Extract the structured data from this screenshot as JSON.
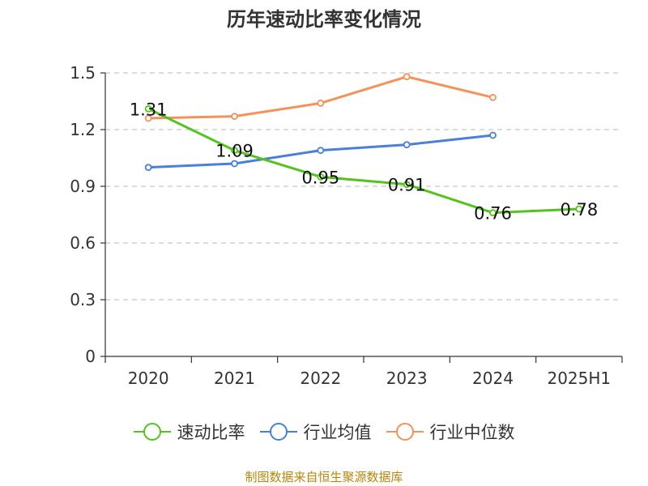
{
  "title": "历年速动比率变化情况",
  "source_note": "制图数据来自恒生聚源数据库",
  "chart_data": {
    "type": "line",
    "categories": [
      "2020",
      "2021",
      "2022",
      "2023",
      "2024",
      "2025H1"
    ],
    "ylim": [
      0,
      1.5
    ],
    "yticks": [
      0,
      0.3,
      0.6,
      0.9,
      1.2,
      1.5
    ],
    "ytick_labels": [
      "0",
      "0.3",
      "0.6",
      "0.9",
      "1.2",
      "1.5"
    ],
    "grid": true,
    "legend_position": "bottom",
    "series": [
      {
        "name": "速动比率",
        "color": "#52c41a",
        "values": [
          1.31,
          1.09,
          0.95,
          0.91,
          0.76,
          0.78
        ],
        "labels": [
          "1.31",
          "1.09",
          "0.95",
          "0.91",
          "0.76",
          "0.78"
        ]
      },
      {
        "name": "行业均值",
        "color": "#4a7fdb",
        "values": [
          1.0,
          1.02,
          1.09,
          1.12,
          1.17,
          null
        ]
      },
      {
        "name": "行业中位数",
        "color": "#f5925a",
        "values": [
          1.26,
          1.27,
          1.34,
          1.48,
          1.37,
          null
        ]
      }
    ]
  }
}
